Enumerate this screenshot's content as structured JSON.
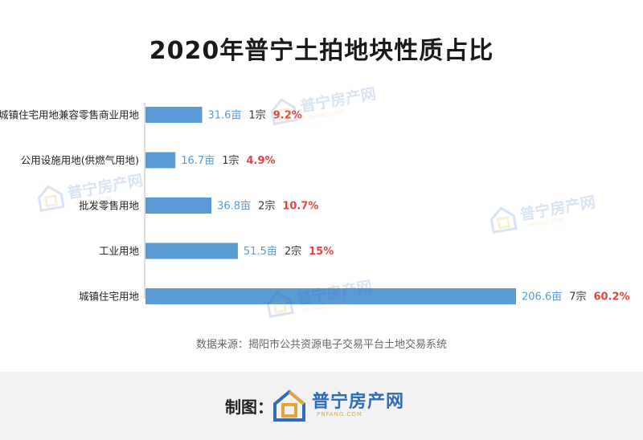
{
  "header": {
    "title": "2020年普宁土拍地块性质占比"
  },
  "chart_data": {
    "type": "bar",
    "orientation": "horizontal",
    "title": "2020年普宁土拍地块性质占比",
    "categories": [
      "城镇住宅用地兼容零售商业用地",
      "公用设施用地(供燃气用地)",
      "批发零售用地",
      "工业用地",
      "城镇住宅用地"
    ],
    "values": [
      31.6,
      16.7,
      36.8,
      51.5,
      206.6
    ],
    "area_labels": [
      "31.6亩",
      "16.7亩",
      "36.8亩",
      "51.5亩",
      "206.6亩"
    ],
    "count_labels": [
      "1宗",
      "1宗",
      "2宗",
      "2宗",
      "7宗"
    ],
    "percent_labels": [
      "9.2%",
      "4.9%",
      "10.7%",
      "15%",
      "60.2%"
    ],
    "xlim": [
      0,
      206.6
    ],
    "bar_color": "#5b9bd5",
    "area_label_color": "#5b9bd5",
    "percent_label_color": "#e8423f",
    "grid": false
  },
  "source": {
    "text": "数据来源：揭阳市公共资源电子交易平台土地交易系统"
  },
  "footer": {
    "label": "制图：",
    "brand_name": "普宁房产网",
    "brand_sub": "PNFANG.COM"
  },
  "watermark": {
    "name": "普宁房产网",
    "sub": "PNFANG.COM"
  },
  "colors": {
    "brand_blue": "#2e6db4",
    "brand_orange": "#e3a33a",
    "footer_bg": "#f2f2f2"
  }
}
